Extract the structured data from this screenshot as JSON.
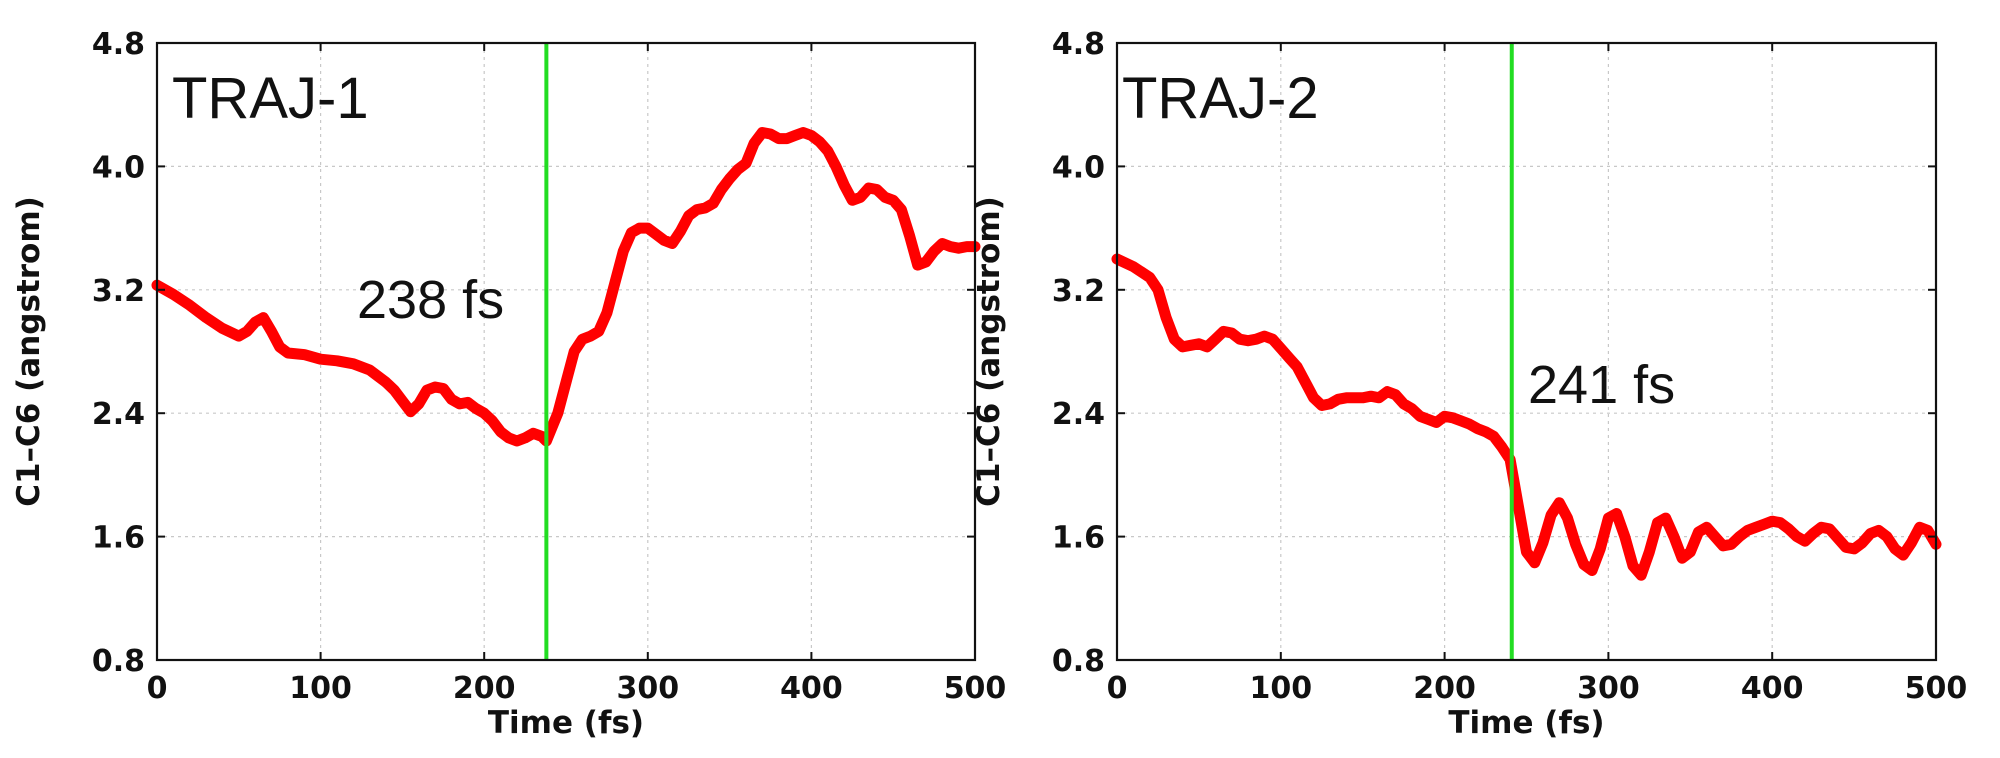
{
  "colors": {
    "series": "#ff0000",
    "marker": "#22dd22",
    "axis": "#111111",
    "grid": "#c8c8c8"
  },
  "chart_data": [
    {
      "type": "line",
      "title": "TRAJ-1",
      "xlabel": "Time (fs)",
      "ylabel": "C1–C6 (angstrom)",
      "xlim": [
        0,
        500
      ],
      "ylim": [
        0.8,
        4.8
      ],
      "xticks": [
        "0",
        "100",
        "200",
        "300",
        "400",
        "500"
      ],
      "yticks": [
        "0.8",
        "1.6",
        "2.4",
        "3.2",
        "4.0",
        "4.8"
      ],
      "grid": true,
      "vline_x": 238,
      "annotation": "238 fs",
      "series": [
        {
          "x": [
            0,
            10,
            20,
            30,
            40,
            50,
            55,
            60,
            65,
            70,
            75,
            80,
            90,
            100,
            110,
            120,
            130,
            140,
            145,
            150,
            155,
            160,
            165,
            170,
            175,
            180,
            185,
            190,
            195,
            200,
            205,
            210,
            215,
            220,
            225,
            230,
            235,
            238,
            245,
            250,
            255,
            260,
            265,
            270,
            275,
            280,
            285,
            290,
            295,
            300,
            305,
            310,
            315,
            320,
            325,
            330,
            335,
            340,
            345,
            350,
            355,
            360,
            365,
            370,
            375,
            380,
            385,
            390,
            395,
            400,
            405,
            410,
            415,
            420,
            425,
            430,
            435,
            440,
            445,
            450,
            455,
            460,
            465,
            470,
            475,
            480,
            485,
            490,
            495,
            500
          ],
          "y": [
            3.23,
            3.17,
            3.1,
            3.02,
            2.95,
            2.9,
            2.93,
            2.99,
            3.02,
            2.93,
            2.83,
            2.79,
            2.78,
            2.75,
            2.74,
            2.72,
            2.68,
            2.6,
            2.55,
            2.48,
            2.41,
            2.46,
            2.55,
            2.57,
            2.56,
            2.49,
            2.46,
            2.47,
            2.43,
            2.4,
            2.35,
            2.28,
            2.24,
            2.22,
            2.24,
            2.27,
            2.25,
            2.22,
            2.4,
            2.6,
            2.8,
            2.88,
            2.9,
            2.93,
            3.05,
            3.25,
            3.45,
            3.57,
            3.6,
            3.6,
            3.56,
            3.52,
            3.5,
            3.58,
            3.68,
            3.72,
            3.73,
            3.76,
            3.85,
            3.92,
            3.98,
            4.02,
            4.15,
            4.22,
            4.21,
            4.18,
            4.18,
            4.2,
            4.22,
            4.2,
            4.16,
            4.1,
            4.0,
            3.88,
            3.78,
            3.8,
            3.86,
            3.85,
            3.8,
            3.78,
            3.72,
            3.55,
            3.36,
            3.38,
            3.45,
            3.5,
            3.48,
            3.47,
            3.48,
            3.48
          ]
        }
      ]
    },
    {
      "type": "line",
      "title": "TRAJ-2",
      "xlabel": "Time (fs)",
      "ylabel": "C1–C6 (angstrom)",
      "xlim": [
        0,
        500
      ],
      "ylim": [
        0.8,
        4.8
      ],
      "xticks": [
        "0",
        "100",
        "200",
        "300",
        "400",
        "500"
      ],
      "yticks": [
        "0.8",
        "1.6",
        "2.4",
        "3.2",
        "4.0",
        "4.8"
      ],
      "grid": true,
      "vline_x": 241,
      "annotation": "241 fs",
      "series": [
        {
          "x": [
            0,
            10,
            20,
            25,
            30,
            35,
            40,
            45,
            50,
            55,
            60,
            65,
            70,
            75,
            80,
            85,
            90,
            95,
            100,
            105,
            110,
            115,
            120,
            125,
            130,
            135,
            140,
            145,
            150,
            155,
            160,
            165,
            170,
            175,
            180,
            185,
            190,
            195,
            200,
            205,
            210,
            215,
            220,
            225,
            230,
            235,
            240,
            245,
            250,
            255,
            260,
            265,
            270,
            275,
            280,
            285,
            290,
            295,
            300,
            305,
            310,
            315,
            320,
            325,
            330,
            335,
            340,
            345,
            350,
            355,
            360,
            365,
            370,
            375,
            380,
            385,
            390,
            395,
            400,
            405,
            410,
            415,
            420,
            425,
            430,
            435,
            440,
            445,
            450,
            455,
            460,
            465,
            470,
            475,
            480,
            485,
            490,
            495,
            500
          ],
          "y": [
            3.4,
            3.35,
            3.28,
            3.2,
            3.02,
            2.88,
            2.83,
            2.84,
            2.85,
            2.83,
            2.88,
            2.93,
            2.92,
            2.88,
            2.87,
            2.88,
            2.9,
            2.88,
            2.82,
            2.76,
            2.7,
            2.6,
            2.5,
            2.45,
            2.46,
            2.49,
            2.5,
            2.5,
            2.5,
            2.51,
            2.5,
            2.54,
            2.52,
            2.46,
            2.43,
            2.38,
            2.36,
            2.34,
            2.38,
            2.37,
            2.35,
            2.33,
            2.3,
            2.28,
            2.25,
            2.18,
            2.1,
            1.8,
            1.5,
            1.43,
            1.56,
            1.74,
            1.82,
            1.72,
            1.55,
            1.42,
            1.38,
            1.52,
            1.72,
            1.75,
            1.6,
            1.41,
            1.35,
            1.5,
            1.69,
            1.72,
            1.6,
            1.46,
            1.5,
            1.63,
            1.66,
            1.6,
            1.54,
            1.55,
            1.6,
            1.64,
            1.66,
            1.68,
            1.7,
            1.69,
            1.65,
            1.6,
            1.57,
            1.62,
            1.66,
            1.65,
            1.59,
            1.53,
            1.52,
            1.56,
            1.62,
            1.64,
            1.6,
            1.52,
            1.48,
            1.56,
            1.66,
            1.64,
            1.55
          ]
        }
      ]
    }
  ]
}
